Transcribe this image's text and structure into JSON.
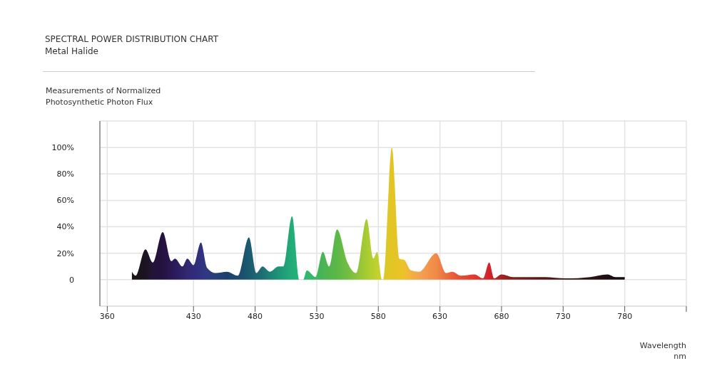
{
  "chart_data": {
    "type": "area",
    "title": "SPECTRAL POWER DISTRIBUTION CHART",
    "subtitle": "Metal Halide",
    "ylabel": "Measurements of Normalized\nPhotosynthetic Photon Flux",
    "xlabel": "Wavelength\nnm",
    "x": [
      380,
      383,
      391,
      397,
      405,
      412,
      415,
      421,
      425,
      430,
      436,
      441,
      448,
      457,
      466,
      475,
      481,
      486,
      492,
      499,
      503,
      510,
      516,
      519,
      522,
      529,
      535,
      540,
      546.5,
      555,
      562,
      570.5,
      576,
      579,
      583,
      584,
      591,
      597,
      601,
      606.5,
      613,
      627,
      635,
      640,
      647,
      658,
      665,
      670,
      674,
      680,
      689.5,
      702,
      715,
      732,
      752,
      766,
      772.5,
      780
    ],
    "values": [
      6,
      3,
      23,
      13,
      36,
      14,
      16,
      10,
      16,
      11,
      28,
      9,
      5,
      6,
      3,
      32,
      5,
      10,
      6,
      10,
      10,
      48,
      0,
      0,
      7,
      2,
      21,
      10,
      38,
      13,
      5,
      46,
      16,
      21,
      0,
      0,
      100,
      16,
      15,
      7,
      6,
      20,
      5,
      6,
      3,
      4,
      1,
      13,
      1,
      4,
      2,
      2,
      2,
      1,
      2,
      4,
      2,
      2
    ],
    "colors": [
      "#1a1418",
      "#1b1419",
      "#1c1420",
      "#22133a",
      "#25123f",
      "#2a1752",
      "#2c1a5a",
      "#2f2268",
      "#31286f",
      "#312a7a",
      "#303280",
      "#2e3a80",
      "#253f78",
      "#1d3f6e",
      "#1a4a6e",
      "#1b5a6e",
      "#1c6672",
      "#1d6f72",
      "#1e8075",
      "#1f9478",
      "#209c78",
      "#22ad78",
      "#24b578",
      "#28b774",
      "#30b870",
      "#3eb662",
      "#4ab455",
      "#52b64e",
      "#5bb848",
      "#72bd42",
      "#8ac23c",
      "#a8cc32",
      "#b6d030",
      "#c0d22e",
      "#d4cc28",
      "#d8ca27",
      "#e3c424",
      "#e8c428",
      "#eec22c",
      "#f2b23e",
      "#f4a350",
      "#f08a48",
      "#ec6e3e",
      "#ea6038",
      "#e54c32",
      "#e03a2c",
      "#d82c2a",
      "#d42228",
      "#bc2424",
      "#a02420",
      "#821f1c",
      "#6a1c1a",
      "#521818",
      "#3a1414",
      "#2a1213",
      "#1e1012",
      "#1a0e10",
      "#150c0e"
    ],
    "xlim": [
      354,
      830
    ],
    "xticks": [
      360,
      430,
      480,
      530,
      580,
      630,
      680,
      730,
      780,
      {
        "value": 830,
        "label": null
      }
    ],
    "ylim": [
      -20,
      120
    ],
    "yticks": [
      0,
      {
        "value": 20,
        "label": "20%"
      },
      {
        "value": 40,
        "label": "40%"
      },
      {
        "value": 60,
        "label": "60%"
      },
      {
        "value": 80,
        "label": "80%"
      },
      {
        "value": 100,
        "label": "100%"
      }
    ],
    "grid": true
  }
}
